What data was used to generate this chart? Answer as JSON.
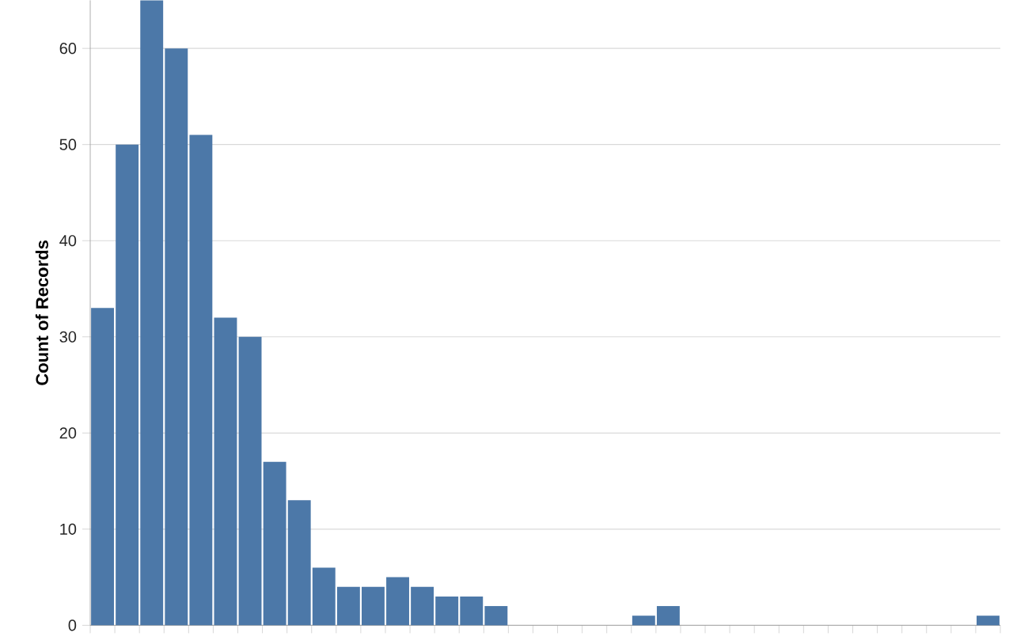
{
  "chart_data": {
    "type": "bar",
    "ylabel": "Count of Records",
    "categories": [
      null,
      null,
      null,
      null,
      null,
      null,
      null,
      null,
      null,
      null,
      null,
      null,
      null,
      null,
      null,
      null,
      null,
      null,
      null,
      null,
      null,
      null,
      null,
      null,
      null,
      null,
      null,
      null,
      null,
      null,
      null,
      null,
      null,
      null,
      null,
      null,
      null
    ],
    "values": [
      33,
      50,
      65,
      60,
      51,
      32,
      30,
      17,
      13,
      6,
      4,
      4,
      5,
      4,
      3,
      3,
      2,
      0,
      0,
      0,
      0,
      0,
      1,
      2,
      0,
      0,
      0,
      0,
      0,
      0,
      0,
      0,
      0,
      0,
      0,
      0,
      1
    ],
    "color": "#4c78a8",
    "ylim": [
      0,
      65
    ],
    "yticks": [
      0,
      10,
      20,
      30,
      40,
      50,
      60
    ],
    "grid": "y"
  }
}
